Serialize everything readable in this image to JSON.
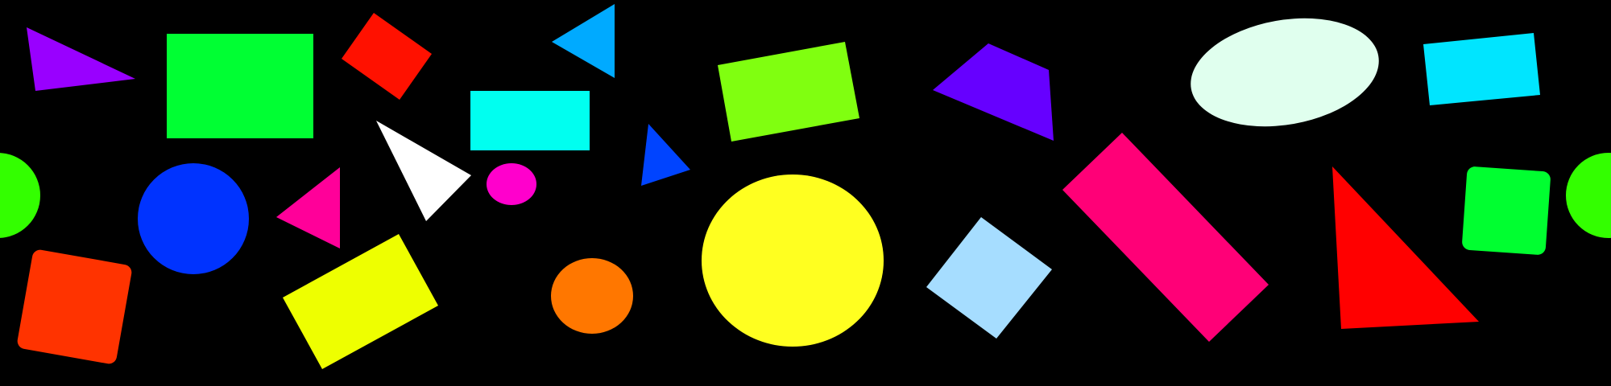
{
  "canvas": {
    "background": "#000000"
  },
  "shapes": [
    {
      "name": "purple-triangle",
      "kind": "triangle",
      "color": "#9900FF"
    },
    {
      "name": "green-rectangle",
      "kind": "rectangle",
      "color": "#00FF33"
    },
    {
      "name": "red-diamond",
      "kind": "rotated-square",
      "color": "#FF1100"
    },
    {
      "name": "sky-blue-triangle",
      "kind": "triangle",
      "color": "#00AAFF"
    },
    {
      "name": "cyan-rectangle",
      "kind": "rectangle",
      "color": "#00FFF0"
    },
    {
      "name": "lime-tilted-rectangle",
      "kind": "rotated-rectangle",
      "color": "#80FF10"
    },
    {
      "name": "violet-quadrilateral",
      "kind": "quadrilateral",
      "color": "#6600FF"
    },
    {
      "name": "mint-ellipse",
      "kind": "ellipse",
      "color": "#E0FFEE"
    },
    {
      "name": "aqua-tilted-rectangle",
      "kind": "rotated-rectangle",
      "color": "#00E5FF"
    },
    {
      "name": "green-half-circle-left",
      "kind": "partial-circle",
      "color": "#33FF00"
    },
    {
      "name": "blue-circle",
      "kind": "circle",
      "color": "#0033FF"
    },
    {
      "name": "magenta-triangle",
      "kind": "triangle",
      "color": "#FF0099"
    },
    {
      "name": "white-triangle",
      "kind": "triangle",
      "color": "#FFFFFF"
    },
    {
      "name": "pink-ellipse",
      "kind": "ellipse",
      "color": "#FF00CC"
    },
    {
      "name": "blue-small-triangle",
      "kind": "triangle",
      "color": "#0044FF"
    },
    {
      "name": "yellow-circle",
      "kind": "ellipse",
      "color": "#FFFF20"
    },
    {
      "name": "crimson-tilted-rectangle",
      "kind": "rotated-rectangle",
      "color": "#FF0077"
    },
    {
      "name": "red-triangle",
      "kind": "triangle",
      "color": "#FF0000"
    },
    {
      "name": "green-rounded-square",
      "kind": "rounded-square",
      "color": "#00FF30"
    },
    {
      "name": "green-half-circle-right",
      "kind": "partial-circle",
      "color": "#33FF00"
    },
    {
      "name": "red-rounded-square",
      "kind": "rounded-square",
      "color": "#FF3300"
    },
    {
      "name": "yellow-tilted-rectangle",
      "kind": "rotated-rectangle",
      "color": "#EEFF00"
    },
    {
      "name": "orange-circle",
      "kind": "ellipse",
      "color": "#FF7700"
    },
    {
      "name": "light-blue-diamond",
      "kind": "rotated-square",
      "color": "#A6DDFF"
    }
  ]
}
